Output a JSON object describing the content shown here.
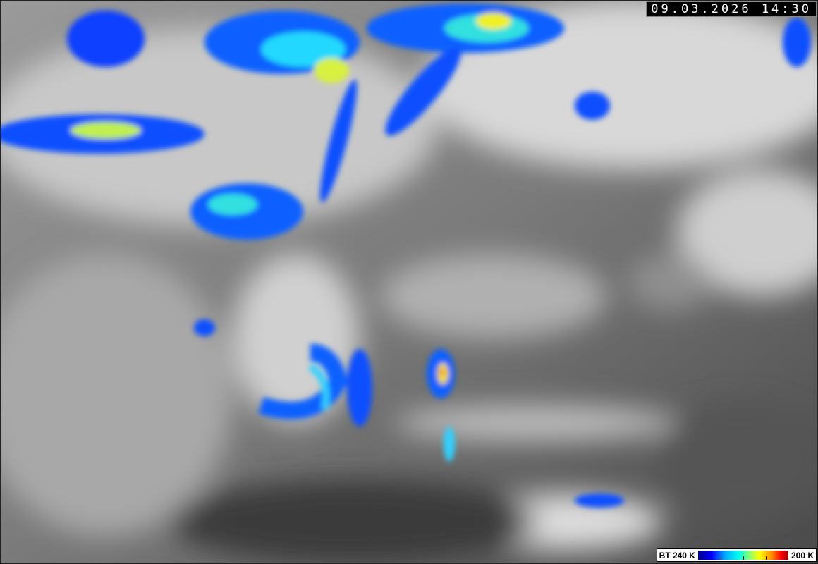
{
  "image": {
    "type": "satellite infrared brightness temperature",
    "timestamp": "09.03.2026 14:30",
    "colors": {
      "ground_gray": "#6e6e6e",
      "cloud_white": "#f0f0f0",
      "cold_blue": "#0033ff",
      "cold_cyan": "#00e0ff",
      "cold_yellow": "#ffee00",
      "cold_red": "#ff2200"
    }
  },
  "legend": {
    "left_label": "BT 240 K",
    "right_label": "200 K",
    "colorscale": [
      "#00008a",
      "#0000ff",
      "#00aaff",
      "#00ffee",
      "#aaff55",
      "#ffff00",
      "#ff8800",
      "#ff0000",
      "#990000"
    ]
  }
}
